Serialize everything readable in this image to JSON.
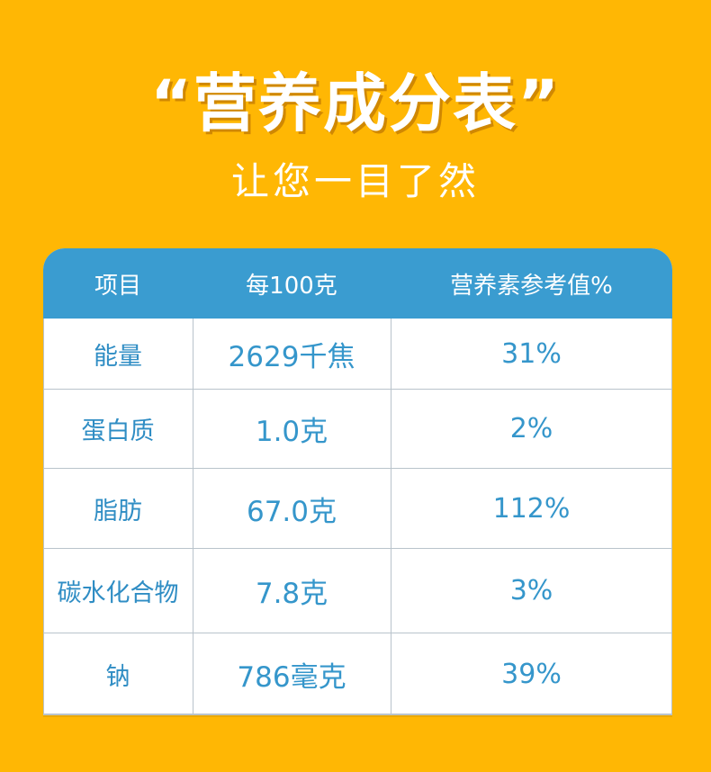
{
  "heading": {
    "title": "“营养成分表”",
    "subtitle": "让您一目了然"
  },
  "table": {
    "headers": [
      "项目",
      "每100克",
      "营养素参考值%"
    ],
    "rows": [
      [
        "能量",
        "2629千焦",
        "31%"
      ],
      [
        "蛋白质",
        "1.0克",
        "2%"
      ],
      [
        "脂肪",
        "67.0克",
        "112%"
      ],
      [
        "碳水化合物",
        "7.8克",
        "3%"
      ],
      [
        "钠",
        "786毫克",
        "39%"
      ]
    ]
  },
  "colors": {
    "background": "#FFB704",
    "header": "#3A9CD0",
    "text_blue": "#3596CB",
    "white": "#FFFFFF"
  }
}
